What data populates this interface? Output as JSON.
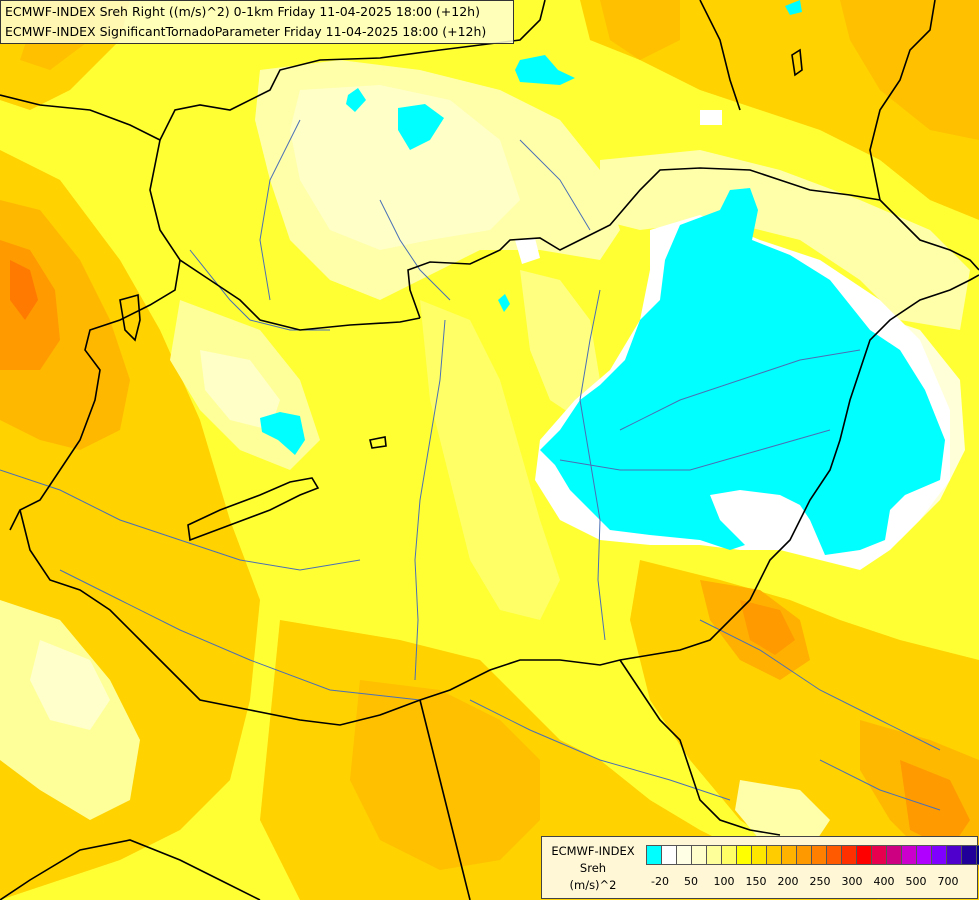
{
  "title": {
    "line1": "ECMWF-INDEX Sreh Right ((m/s)^2) 0-1km Friday 11-04-2025 18:00 (+12h)",
    "line2": "ECMWF-INDEX SignificantTornadoParameter Friday 11-04-2025 18:00 (+12h)"
  },
  "legend": {
    "line1": "ECMWF-INDEX",
    "line2": "Sreh",
    "line3": "(m/s)^2",
    "ticks": [
      "-20",
      "50",
      "100",
      "150",
      "200",
      "250",
      "300",
      "400",
      "500",
      "700"
    ],
    "colors": [
      "#00ffff",
      "#ffffff",
      "#ffffe6",
      "#ffffcc",
      "#ffff99",
      "#ffff66",
      "#ffff00",
      "#ffe600",
      "#ffcc00",
      "#ffb300",
      "#ff9900",
      "#ff7f00",
      "#ff5a00",
      "#ff3000",
      "#ff0000",
      "#e6004d",
      "#cc0080",
      "#cc00cc",
      "#b000ff",
      "#8000ff",
      "#5000cc",
      "#200099",
      "#000080"
    ]
  },
  "colors": {
    "field_low": "#ffffcc",
    "field_mid": "#ffff66",
    "field_high": "#ffcc00",
    "field_peak": "#ff9900",
    "negative": "#00ffff",
    "border": "#000000",
    "river": "#4a6fb5"
  }
}
